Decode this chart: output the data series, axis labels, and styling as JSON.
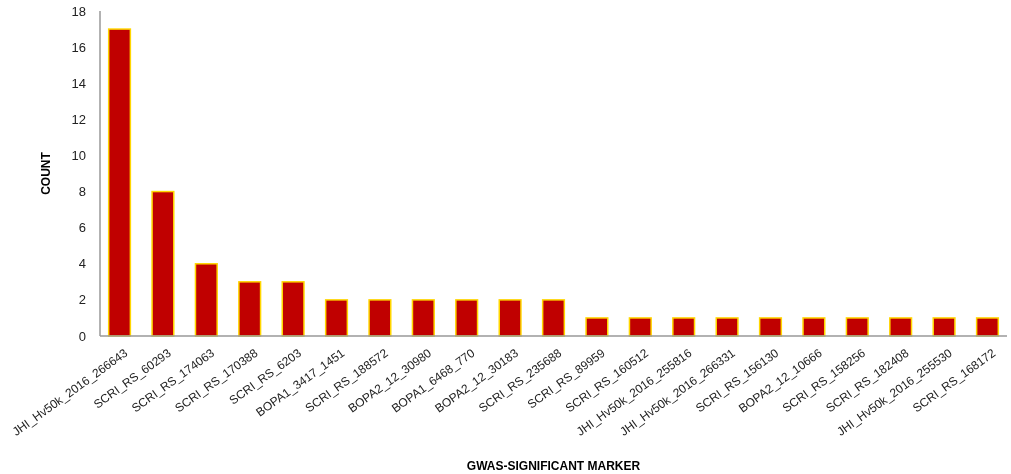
{
  "chart_data": {
    "type": "bar",
    "xlabel": "GWAS-SIGNIFICANT MARKER",
    "ylabel": "COUNT",
    "categories": [
      "JHI_Hv50k_2016_266643",
      "SCRI_RS_60293",
      "SCRI_RS_174063",
      "SCRI_RS_170388",
      "SCRI_RS_6203",
      "BOPA1_3417_1451",
      "SCRI_RS_188572",
      "BOPA2_12_30980",
      "BOPA1_6468_770",
      "BOPA2_12_30183",
      "SCRI_RS_235688",
      "SCRI_RS_89959",
      "SCRI_RS_160512",
      "JHI_Hv50k_2016_255816",
      "JHI_Hv50k_2016_266331",
      "SCRI_RS_156130",
      "BOPA2_12_10666",
      "SCRI_RS_158256",
      "SCRI_RS_182408",
      "JHI_Hv50k_2016_255530",
      "SCRI_RS_168172"
    ],
    "values": [
      17,
      8,
      4,
      3,
      3,
      2,
      2,
      2,
      2,
      2,
      2,
      1,
      1,
      1,
      1,
      1,
      1,
      1,
      1,
      1,
      1
    ],
    "color": "#c00000",
    "ylim": [
      0,
      18
    ],
    "yticks": [
      0,
      2,
      4,
      6,
      8,
      10,
      12,
      14,
      16,
      18
    ],
    "grid": false
  }
}
